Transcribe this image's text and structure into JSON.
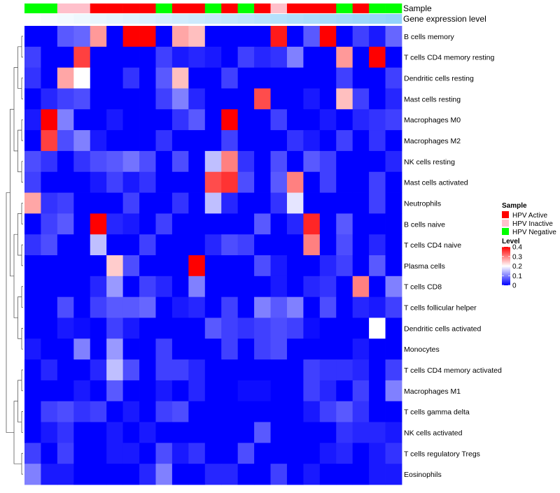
{
  "chart_data": {
    "type": "heatmap",
    "row_labels": [
      "B cells memory",
      "T cells CD4 memory resting",
      "Dendritic cells resting",
      "Mast cells resting",
      "Macrophages M0",
      "Macrophages M2",
      "NK cells resting",
      "Mast cells activated",
      "Neutrophils",
      "B cells naive",
      "T cells CD4 naive",
      "Plasma cells",
      "T cells CD8",
      "T cells follicular helper",
      "Dendritic cells activated",
      "Monocytes",
      "T cells CD4 memory activated",
      "Macrophages M1",
      "T cells gamma delta",
      "NK cells activated",
      "T cells regulatory  Tregs",
      "Eosinophils"
    ],
    "annotation_labels": {
      "sample": "Sample",
      "gene": "Gene expression level"
    },
    "sample_groups": [
      "neg",
      "neg",
      "ina",
      "ina",
      "act",
      "act",
      "act",
      "act",
      "neg",
      "act",
      "act",
      "neg",
      "act",
      "neg",
      "act",
      "ina",
      "act",
      "act",
      "act",
      "neg",
      "act",
      "neg",
      "neg"
    ],
    "gene_levels": [
      0.02,
      0.06,
      0.1,
      0.14,
      0.18,
      0.22,
      0.26,
      0.3,
      0.34,
      0.38,
      0.42,
      0.46,
      0.5,
      0.54,
      0.58,
      0.62,
      0.66,
      0.7,
      0.74,
      0.78,
      0.82,
      0.86,
      0.9
    ],
    "values": [
      [
        0,
        0,
        0.07,
        0.08,
        0.28,
        0,
        0.4,
        0.4,
        0,
        0.27,
        0.25,
        0,
        0,
        0,
        0,
        0.38,
        0,
        0.07,
        0.4,
        0,
        0.05,
        0.02,
        0.08
      ],
      [
        0.05,
        0,
        0,
        0.35,
        0,
        0,
        0,
        0,
        0.05,
        0.02,
        0.03,
        0.02,
        0,
        0.05,
        0.03,
        0.04,
        0.1,
        0,
        0,
        0.28,
        0,
        0.4,
        0
      ],
      [
        0.04,
        0,
        0.27,
        0.2,
        0,
        0,
        0.04,
        0,
        0.07,
        0.25,
        0,
        0,
        0.05,
        0,
        0,
        0,
        0,
        0,
        0,
        0.05,
        0,
        0,
        0.05
      ],
      [
        0,
        0.03,
        0.05,
        0.06,
        0,
        0,
        0,
        0,
        0.05,
        0.1,
        0.03,
        0,
        0,
        0,
        0.34,
        0,
        0,
        0.02,
        0,
        0.25,
        0.05,
        0,
        0.03
      ],
      [
        0.02,
        0.4,
        0.1,
        0,
        0,
        0.02,
        0,
        0,
        0,
        0.04,
        0.07,
        0,
        0.4,
        0,
        0,
        0.05,
        0,
        0,
        0.02,
        0,
        0.03,
        0.04,
        0.05
      ],
      [
        0,
        0.35,
        0.06,
        0.1,
        0.02,
        0,
        0,
        0,
        0.04,
        0,
        0,
        0,
        0.05,
        0,
        0,
        0,
        0.04,
        0.02,
        0,
        0.05,
        0,
        0.04,
        0
      ],
      [
        0.06,
        0.04,
        0,
        0.04,
        0.06,
        0.07,
        0.09,
        0.06,
        0,
        0.06,
        0,
        0.15,
        0.3,
        0.04,
        0,
        0.06,
        0,
        0.07,
        0.05,
        0,
        0,
        0,
        0.03
      ],
      [
        0.05,
        0,
        0,
        0,
        0.02,
        0.05,
        0.02,
        0.04,
        0,
        0,
        0,
        0.34,
        0.36,
        0.06,
        0,
        0.07,
        0.3,
        0,
        0.05,
        0,
        0,
        0.05,
        0
      ],
      [
        0.27,
        0.04,
        0.05,
        0,
        0,
        0,
        0.05,
        0,
        0,
        0.04,
        0,
        0.15,
        0.03,
        0,
        0,
        0.04,
        0.18,
        0,
        0,
        0,
        0,
        0.05,
        0
      ],
      [
        0,
        0.05,
        0.07,
        0,
        0.4,
        0.03,
        0.02,
        0,
        0.05,
        0,
        0,
        0,
        0,
        0,
        0.07,
        0,
        0.03,
        0.37,
        0,
        0.07,
        0,
        0,
        0
      ],
      [
        0.04,
        0.06,
        0,
        0,
        0.15,
        0,
        0,
        0.05,
        0,
        0,
        0,
        0.03,
        0.06,
        0.05,
        0,
        0,
        0,
        0.3,
        0,
        0.06,
        0,
        0.03,
        0
      ],
      [
        0,
        0,
        0,
        0,
        0,
        0.24,
        0.06,
        0,
        0,
        0,
        0.4,
        0,
        0,
        0,
        0.06,
        0.02,
        0,
        0,
        0.03,
        0.05,
        0,
        0.07,
        0
      ],
      [
        0,
        0,
        0,
        0,
        0.03,
        0.12,
        0,
        0.05,
        0.03,
        0,
        0.1,
        0,
        0,
        0,
        0,
        0.02,
        0,
        0.03,
        0.04,
        0,
        0.3,
        0,
        0.1
      ],
      [
        0,
        0,
        0.06,
        0,
        0.05,
        0.07,
        0.07,
        0.08,
        0,
        0.02,
        0.03,
        0,
        0.05,
        0,
        0.1,
        0.07,
        0.1,
        0,
        0.06,
        0,
        0.03,
        0.02,
        0.05
      ],
      [
        0,
        0,
        0.02,
        0.01,
        0,
        0.05,
        0.02,
        0,
        0,
        0,
        0,
        0.07,
        0.05,
        0.04,
        0.05,
        0.06,
        0.05,
        0.01,
        0,
        0,
        0,
        0.2,
        0
      ],
      [
        0.02,
        0,
        0,
        0.1,
        0,
        0.12,
        0,
        0,
        0.05,
        0,
        0,
        0,
        0.05,
        0,
        0.05,
        0.06,
        0,
        0,
        0,
        0,
        0.02,
        0,
        0
      ],
      [
        0,
        0.03,
        0,
        0,
        0.03,
        0.15,
        0.06,
        0,
        0.05,
        0.05,
        0.03,
        0,
        0,
        0,
        0,
        0,
        0,
        0.05,
        0.04,
        0.04,
        0.03,
        0,
        0.05
      ],
      [
        0,
        0,
        0,
        0.02,
        0,
        0.07,
        0,
        0,
        0.02,
        0,
        0.03,
        0,
        0,
        0.01,
        0.01,
        0,
        0,
        0.05,
        0.03,
        0,
        0.05,
        0,
        0.1
      ],
      [
        0,
        0.05,
        0.06,
        0.04,
        0.05,
        0,
        0.02,
        0,
        0.05,
        0.06,
        0,
        0,
        0,
        0,
        0,
        0,
        0,
        0.02,
        0.05,
        0.07,
        0.04,
        0,
        0
      ],
      [
        0,
        0.02,
        0.04,
        0,
        0,
        0.02,
        0,
        0.02,
        0,
        0,
        0,
        0,
        0,
        0,
        0.07,
        0,
        0,
        0,
        0,
        0.04,
        0.03,
        0.03,
        0.02
      ],
      [
        0.05,
        0,
        0.05,
        0,
        0,
        0.02,
        0.02,
        0,
        0.06,
        0.02,
        0.04,
        0,
        0,
        0.06,
        0,
        0,
        0,
        0,
        0.02,
        0.03,
        0,
        0.02,
        0.04
      ],
      [
        0.1,
        0.02,
        0.02,
        0,
        0,
        0,
        0,
        0.03,
        0.1,
        0,
        0,
        0.03,
        0.03,
        0,
        0,
        0.05,
        0,
        0.02,
        0,
        0,
        0,
        0.02,
        0.02
      ]
    ],
    "color_scale": {
      "min": 0,
      "max": 0.4,
      "low": "#0000FF",
      "mid": "#FFFFFF",
      "high": "#FF0000",
      "mid_value": 0.2
    },
    "legend": {
      "sample_title": "Sample",
      "sample_items": [
        {
          "key": "act",
          "label": "HPV Active",
          "color": "#FF0000"
        },
        {
          "key": "ina",
          "label": "HPV Inactive",
          "color": "#FFC0CB"
        },
        {
          "key": "neg",
          "label": "HPV Negative",
          "color": "#00FF00"
        }
      ],
      "level_title": "Level",
      "level_ticks": [
        "0.4",
        "0.3",
        "0.2",
        "0.1",
        "0"
      ],
      "level_tick_values": [
        0.4,
        0.3,
        0.2,
        0.1,
        0
      ]
    },
    "gene_scale": {
      "low": "#FFFFFF",
      "high": "#87CEFA"
    },
    "dendrogram": "row clustering tree on left"
  }
}
